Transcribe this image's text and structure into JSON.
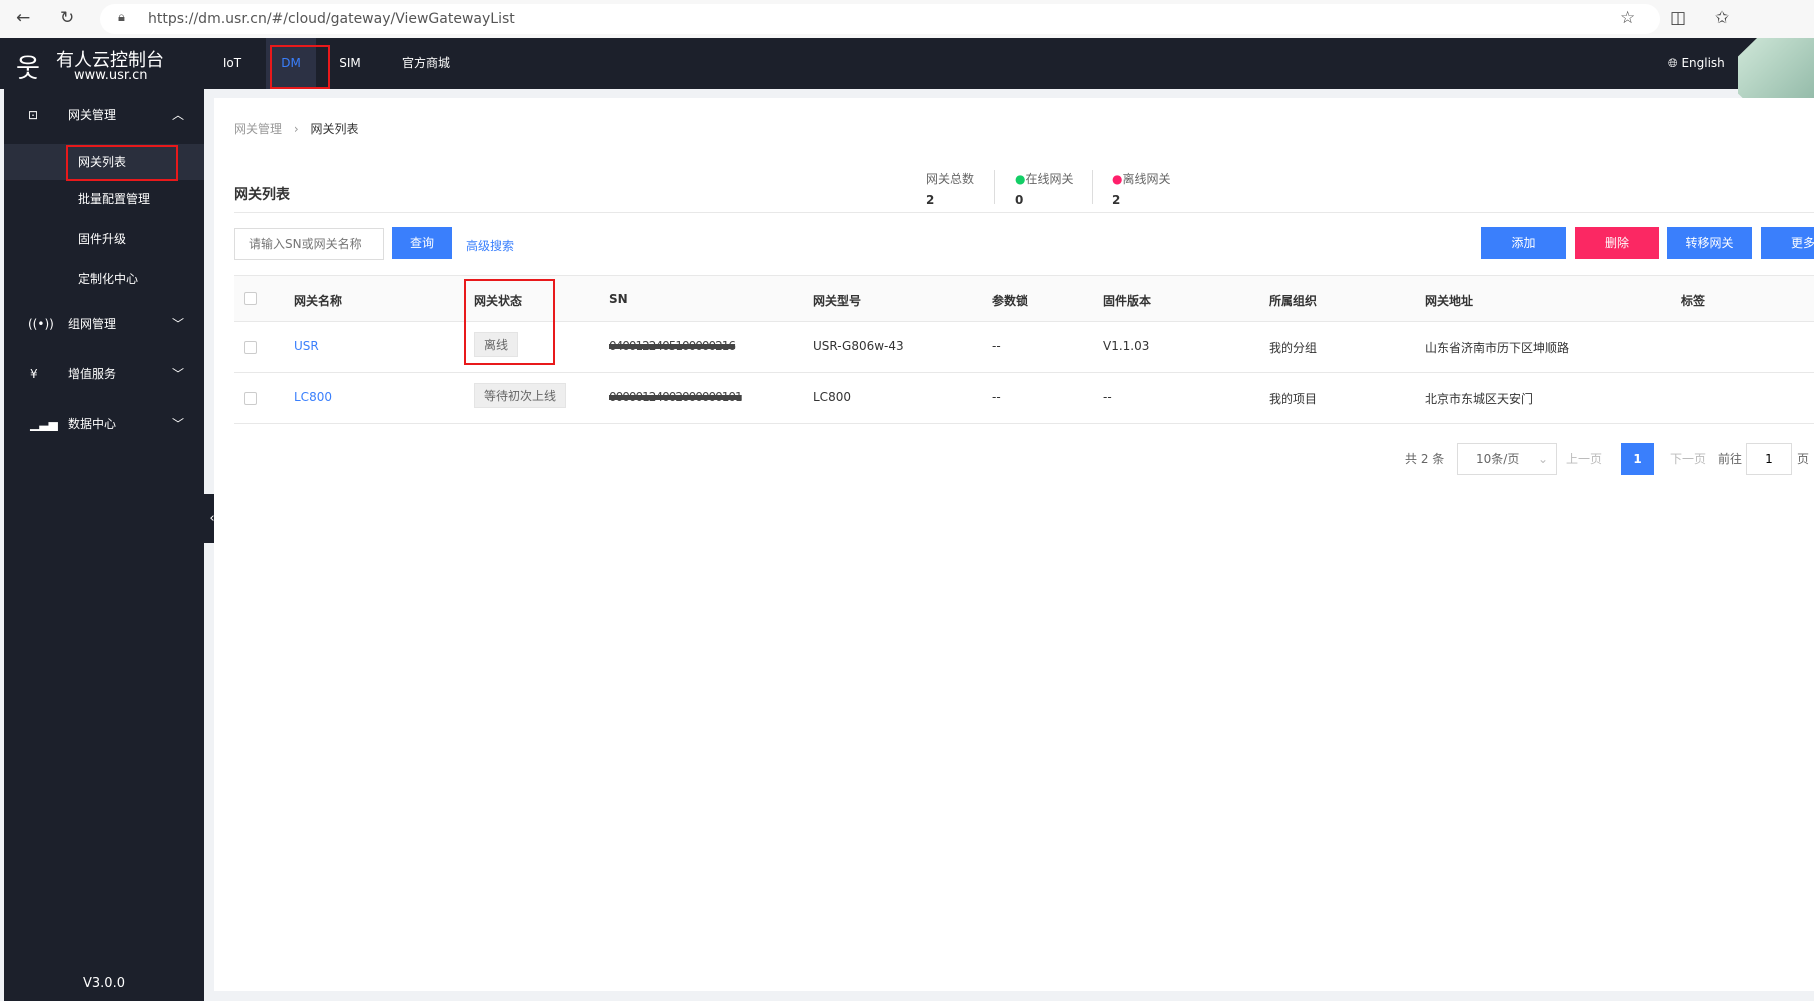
{
  "browser": {
    "url": "https://dm.usr.cn/#/cloud/gateway/ViewGatewayList"
  },
  "header": {
    "brand": "有人云控制台",
    "brand_sub": "www.usr.cn",
    "nav": [
      "IoT",
      "DM",
      "SIM",
      "官方商城"
    ],
    "language": "English"
  },
  "sidebar": {
    "groups": [
      {
        "label": "网关管理",
        "items": [
          "网关列表",
          "批量配置管理",
          "固件升级",
          "定制化中心"
        ]
      },
      {
        "label": "组网管理"
      },
      {
        "label": "增值服务"
      },
      {
        "label": "数据中心"
      }
    ],
    "version": "V3.0.0"
  },
  "breadcrumb": [
    "网关管理",
    "网关列表"
  ],
  "page_title": "网关列表",
  "stats": [
    {
      "label": "网关总数",
      "value": "2"
    },
    {
      "label": "在线网关",
      "value": "0",
      "color": "#13ce66"
    },
    {
      "label": "离线网关",
      "value": "2",
      "color": "#ff1f6b"
    }
  ],
  "search": {
    "placeholder": "请输入SN或网关名称",
    "query": "查询",
    "advanced": "高级搜索"
  },
  "actions": {
    "add": "添加",
    "delete": "删除",
    "transfer": "转移网关",
    "more": "更多"
  },
  "table": {
    "columns": [
      "网关名称",
      "网关状态",
      "SN",
      "网关型号",
      "参数锁",
      "固件版本",
      "所属组织",
      "网关地址",
      "标签"
    ],
    "rows": [
      {
        "name": "USR",
        "status": "离线",
        "sn": "0400122405100000216",
        "model": "USR-G806w-43",
        "lock": "--",
        "firmware": "V1.1.03",
        "org": "我的分组",
        "address": "山东省济南市历下区坤顺路",
        "tags": ""
      },
      {
        "name": "LC800",
        "status": "等待初次上线",
        "sn": "00000124002000000101",
        "model": "LC800",
        "lock": "--",
        "firmware": "--",
        "org": "我的项目",
        "address": "北京市东城区天安门",
        "tags": ""
      }
    ]
  },
  "pagination": {
    "total": "共 2 条",
    "page_size": "10条/页",
    "prev": "上一页",
    "current": "1",
    "next": "下一页",
    "goto": "前往",
    "goto_value": "1",
    "page_unit": "页"
  },
  "colors": {
    "primary": "#3a7ffc",
    "danger": "#fb2863",
    "sidebar_bg": "#1c202b"
  }
}
